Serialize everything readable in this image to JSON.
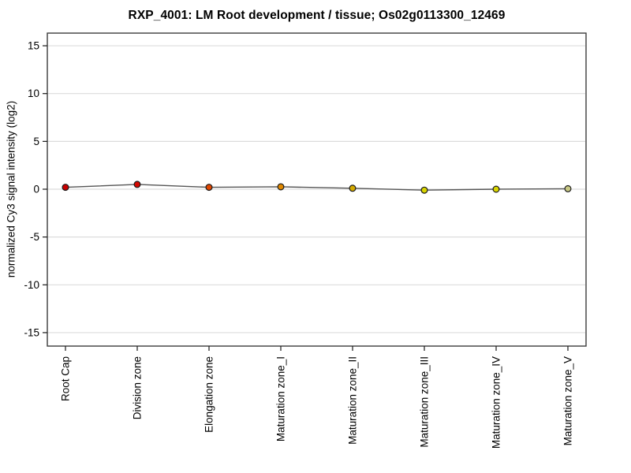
{
  "chart_data": {
    "type": "line",
    "title": "RXP_4001: LM Root development / tissue; Os02g0113300_12469",
    "ylabel": "normalized Cy3 signal intensity (log2)",
    "xlabel": "",
    "categories": [
      "Root Cap",
      "Division zone",
      "Elongation zone",
      "Maturation zone_I",
      "Maturation zone_II",
      "Maturation zone_III",
      "Maturation zone_IV",
      "Maturation zone_V"
    ],
    "values": [
      0.2,
      0.5,
      0.2,
      0.25,
      0.1,
      -0.1,
      0.0,
      0.05
    ],
    "point_colors": [
      "#c80000",
      "#d40800",
      "#e04600",
      "#e08800",
      "#d4aa00",
      "#d8d400",
      "#d8d400",
      "#c8c884"
    ],
    "point_outline_color": "#1a1a1a",
    "line_color": "#555555",
    "grid": true,
    "grid_color": "#dcdcdc",
    "border_color": "#3c3c3c",
    "tick_color": "#1a1a1a",
    "yticks": [
      15,
      10,
      5,
      0,
      -5,
      -10,
      -15
    ],
    "ylim": [
      -16.3,
      16.4
    ],
    "legend": false
  }
}
